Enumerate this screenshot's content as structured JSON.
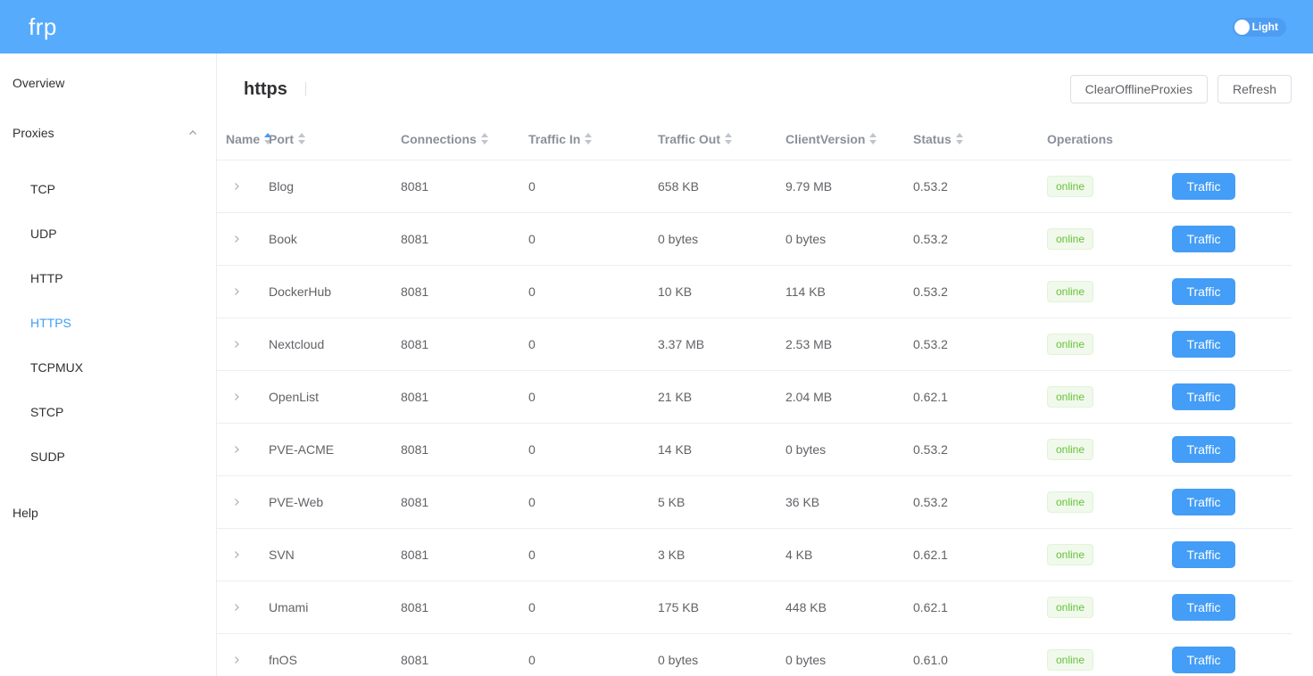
{
  "app": {
    "logo": "frp",
    "theme_toggle_label": "Light"
  },
  "sidebar": {
    "overview_label": "Overview",
    "proxies_label": "Proxies",
    "sub_items": [
      "TCP",
      "UDP",
      "HTTP",
      "HTTPS",
      "TCPMUX",
      "STCP",
      "SUDP"
    ],
    "active_item": "HTTPS",
    "help_label": "Help"
  },
  "page": {
    "title": "https",
    "clear_offline_button_label": "ClearOfflineProxies",
    "refresh_button_label": "Refresh"
  },
  "table": {
    "columns": [
      {
        "label": "Name",
        "sortable": true,
        "sort_active": "ascending"
      },
      {
        "label": "Port",
        "sortable": true,
        "sort_active": null
      },
      {
        "label": "Connections",
        "sortable": true,
        "sort_active": null
      },
      {
        "label": "Traffic In",
        "sortable": true,
        "sort_active": null
      },
      {
        "label": "Traffic Out",
        "sortable": true,
        "sort_active": null
      },
      {
        "label": "ClientVersion",
        "sortable": true,
        "sort_active": null
      },
      {
        "label": "Status",
        "sortable": true,
        "sort_active": null
      },
      {
        "label": "Operations",
        "sortable": false,
        "sort_active": null
      }
    ],
    "traffic_button_label": "Traffic",
    "rows": [
      {
        "name": "Blog",
        "port": "8081",
        "connections": "0",
        "traffic_in": "658 KB",
        "traffic_out": "9.79 MB",
        "client_version": "0.53.2",
        "status": "online"
      },
      {
        "name": "Book",
        "port": "8081",
        "connections": "0",
        "traffic_in": "0 bytes",
        "traffic_out": "0 bytes",
        "client_version": "0.53.2",
        "status": "online"
      },
      {
        "name": "DockerHub",
        "port": "8081",
        "connections": "0",
        "traffic_in": "10 KB",
        "traffic_out": "114 KB",
        "client_version": "0.53.2",
        "status": "online"
      },
      {
        "name": "Nextcloud",
        "port": "8081",
        "connections": "0",
        "traffic_in": "3.37 MB",
        "traffic_out": "2.53 MB",
        "client_version": "0.53.2",
        "status": "online"
      },
      {
        "name": "OpenList",
        "port": "8081",
        "connections": "0",
        "traffic_in": "21 KB",
        "traffic_out": "2.04 MB",
        "client_version": "0.62.1",
        "status": "online"
      },
      {
        "name": "PVE-ACME",
        "port": "8081",
        "connections": "0",
        "traffic_in": "14 KB",
        "traffic_out": "0 bytes",
        "client_version": "0.53.2",
        "status": "online"
      },
      {
        "name": "PVE-Web",
        "port": "8081",
        "connections": "0",
        "traffic_in": "5 KB",
        "traffic_out": "36 KB",
        "client_version": "0.53.2",
        "status": "online"
      },
      {
        "name": "SVN",
        "port": "8081",
        "connections": "0",
        "traffic_in": "3 KB",
        "traffic_out": "4 KB",
        "client_version": "0.62.1",
        "status": "online"
      },
      {
        "name": "Umami",
        "port": "8081",
        "connections": "0",
        "traffic_in": "175 KB",
        "traffic_out": "448 KB",
        "client_version": "0.62.1",
        "status": "online"
      },
      {
        "name": "fnOS",
        "port": "8081",
        "connections": "0",
        "traffic_in": "0 bytes",
        "traffic_out": "0 bytes",
        "client_version": "0.61.0",
        "status": "online"
      }
    ]
  },
  "colors": {
    "header_bg": "#56abfc",
    "toggle_bg": "#4d9df3",
    "primary": "#419ef8",
    "traffic_button": "#449df6",
    "success_text": "#67c23a",
    "success_bg": "#f0f9eb",
    "success_border": "#e1f3d8",
    "row_border": "#ebeef5",
    "text_primary": "#303133",
    "text_regular": "#606266",
    "text_header": "#8b909a"
  }
}
